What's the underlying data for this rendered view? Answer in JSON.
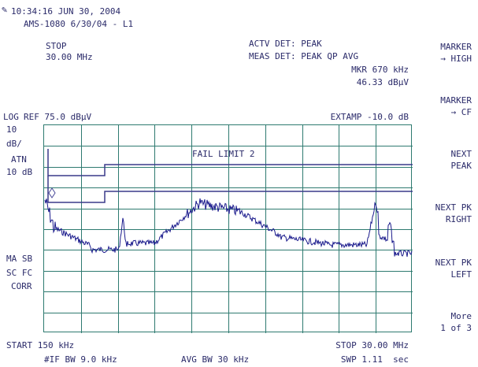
{
  "header": {
    "timestamp": "10:34:16 JUN 30, 2004",
    "id": "AMS-1080 6/30/04 - L1"
  },
  "stop_panel": {
    "label": "STOP",
    "value": "30.00 MHz"
  },
  "detectors": {
    "actv": "ACTV DET: PEAK",
    "meas": "MEAS DET: PEAK QP AVG",
    "marker_freq": "MKR 670 kHz",
    "marker_amp": "46.33 dBµV"
  },
  "scale": {
    "log": "LOG",
    "ref": "REF 75.0 dBµV",
    "extamp": "EXTAMP -10.0 dB",
    "left_labels": [
      "10",
      "dB/",
      "ATN",
      "10 dB"
    ],
    "ma": "MA SB",
    "sc": "SC FC",
    "corr": "CORR"
  },
  "fail_label": "FAIL LIMIT 2",
  "footer": {
    "start": "START 150 kHz",
    "stop": "STOP 30.00 MHz",
    "ifbw": "#IF BW 9.0 kHz",
    "avgbw": "AVG BW 30 kHz",
    "swp": "SWP 1.11  sec"
  },
  "softkeys": [
    {
      "l1": "MARKER",
      "l2": "→ HIGH"
    },
    {
      "l1": "MARKER",
      "l2": "→ CF"
    },
    {
      "l1": "NEXT",
      "l2": "PEAK"
    },
    {
      "l1": "NEXT PK",
      "l2": "RIGHT"
    },
    {
      "l1": "NEXT PK",
      "l2": "LEFT"
    },
    {
      "l1": "More",
      "l2": "1 of 3"
    }
  ],
  "colors": {
    "grid": "#2e7a70",
    "trace": "#1a1a8c",
    "limit": "#3a3a8a",
    "text": "#2b2b6a"
  }
}
